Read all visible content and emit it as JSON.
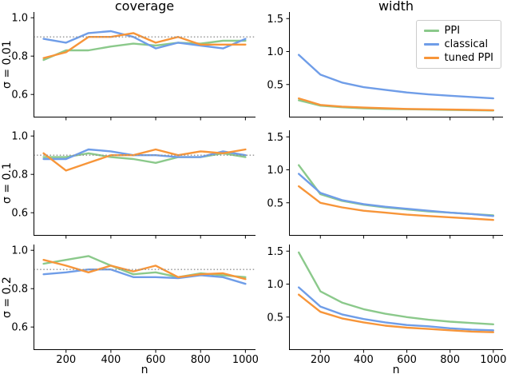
{
  "figure": {
    "col_titles": [
      "coverage",
      "width"
    ],
    "row_labels": [
      "σ = 0.01",
      "σ = 0.1",
      "σ = 0.2"
    ],
    "xlabel": "n",
    "coverage_target_level": 0.9,
    "colors": {
      "ppi": "#8bc98b",
      "classical": "#6f9de8",
      "tuned_ppi": "#f79539",
      "target_line": "#909090",
      "axis": "#000000"
    },
    "legend": {
      "position": "upper right",
      "items": [
        {
          "label": "PPI",
          "color": "#8bc98b"
        },
        {
          "label": "classical",
          "color": "#6f9de8"
        },
        {
          "label": "tuned PPI",
          "color": "#f79539"
        }
      ]
    }
  },
  "chart_data": [
    {
      "type": "line",
      "col": "coverage",
      "row": "σ = 0.01",
      "x": [
        100,
        200,
        300,
        400,
        500,
        600,
        700,
        800,
        900,
        1000
      ],
      "xlim": [
        55,
        1045
      ],
      "ylim": [
        0.48,
        1.03
      ],
      "xticks": [
        200,
        400,
        600,
        800,
        1000
      ],
      "yticks": [
        0.6,
        0.8,
        1.0
      ],
      "target_line": 0.9,
      "series": [
        {
          "name": "PPI",
          "color": "#8bc98b",
          "values": [
            0.78,
            0.83,
            0.83,
            0.85,
            0.865,
            0.855,
            0.87,
            0.865,
            0.88,
            0.88
          ]
        },
        {
          "name": "classical",
          "color": "#6f9de8",
          "values": [
            0.89,
            0.87,
            0.92,
            0.93,
            0.9,
            0.84,
            0.87,
            0.855,
            0.84,
            0.89
          ]
        },
        {
          "name": "tuned PPI",
          "color": "#f79539",
          "values": [
            0.79,
            0.82,
            0.9,
            0.9,
            0.92,
            0.87,
            0.9,
            0.86,
            0.86,
            0.86
          ]
        }
      ]
    },
    {
      "type": "line",
      "col": "width",
      "row": "σ = 0.01",
      "x": [
        100,
        200,
        300,
        400,
        500,
        600,
        700,
        800,
        900,
        1000
      ],
      "xlim": [
        55,
        1045
      ],
      "ylim": [
        0.0,
        1.6
      ],
      "xticks": [
        200,
        400,
        600,
        800,
        1000
      ],
      "yticks": [
        0.5,
        1.0,
        1.5
      ],
      "target_line": null,
      "series": [
        {
          "name": "PPI",
          "color": "#8bc98b",
          "values": [
            0.26,
            0.18,
            0.155,
            0.14,
            0.13,
            0.125,
            0.12,
            0.115,
            0.11,
            0.105
          ]
        },
        {
          "name": "classical",
          "color": "#6f9de8",
          "values": [
            0.95,
            0.65,
            0.53,
            0.46,
            0.42,
            0.38,
            0.35,
            0.33,
            0.31,
            0.29
          ]
        },
        {
          "name": "tuned PPI",
          "color": "#f79539",
          "values": [
            0.29,
            0.19,
            0.165,
            0.15,
            0.14,
            0.13,
            0.125,
            0.12,
            0.115,
            0.11
          ]
        }
      ]
    },
    {
      "type": "line",
      "col": "coverage",
      "row": "σ = 0.1",
      "x": [
        100,
        200,
        300,
        400,
        500,
        600,
        700,
        800,
        900,
        1000
      ],
      "xlim": [
        55,
        1045
      ],
      "ylim": [
        0.48,
        1.03
      ],
      "xticks": [
        200,
        400,
        600,
        800,
        1000
      ],
      "yticks": [
        0.6,
        0.8,
        1.0
      ],
      "target_line": 0.9,
      "series": [
        {
          "name": "PPI",
          "color": "#8bc98b",
          "values": [
            0.89,
            0.89,
            0.91,
            0.89,
            0.88,
            0.86,
            0.89,
            0.89,
            0.91,
            0.89
          ]
        },
        {
          "name": "classical",
          "color": "#6f9de8",
          "values": [
            0.88,
            0.88,
            0.93,
            0.92,
            0.9,
            0.9,
            0.89,
            0.89,
            0.92,
            0.9
          ]
        },
        {
          "name": "tuned PPI",
          "color": "#f79539",
          "values": [
            0.91,
            0.82,
            0.86,
            0.9,
            0.9,
            0.93,
            0.9,
            0.92,
            0.91,
            0.93
          ]
        }
      ]
    },
    {
      "type": "line",
      "col": "width",
      "row": "σ = 0.1",
      "x": [
        100,
        200,
        300,
        400,
        500,
        600,
        700,
        800,
        900,
        1000
      ],
      "xlim": [
        55,
        1045
      ],
      "ylim": [
        0.0,
        1.6
      ],
      "xticks": [
        200,
        400,
        600,
        800,
        1000
      ],
      "yticks": [
        0.5,
        1.0,
        1.5
      ],
      "target_line": null,
      "series": [
        {
          "name": "PPI",
          "color": "#8bc98b",
          "values": [
            1.07,
            0.63,
            0.53,
            0.47,
            0.43,
            0.4,
            0.37,
            0.35,
            0.33,
            0.31
          ]
        },
        {
          "name": "classical",
          "color": "#6f9de8",
          "values": [
            0.94,
            0.65,
            0.54,
            0.48,
            0.44,
            0.41,
            0.38,
            0.35,
            0.33,
            0.3
          ]
        },
        {
          "name": "tuned PPI",
          "color": "#f79539",
          "values": [
            0.75,
            0.5,
            0.43,
            0.38,
            0.35,
            0.32,
            0.3,
            0.28,
            0.26,
            0.24
          ]
        }
      ]
    },
    {
      "type": "line",
      "col": "coverage",
      "row": "σ = 0.2",
      "x": [
        100,
        200,
        300,
        400,
        500,
        600,
        700,
        800,
        900,
        1000
      ],
      "xlim": [
        55,
        1045
      ],
      "ylim": [
        0.48,
        1.03
      ],
      "xticks": [
        200,
        400,
        600,
        800,
        1000
      ],
      "yticks": [
        0.6,
        0.8,
        1.0
      ],
      "target_line": 0.9,
      "series": [
        {
          "name": "PPI",
          "color": "#8bc98b",
          "values": [
            0.93,
            0.95,
            0.97,
            0.92,
            0.875,
            0.885,
            0.86,
            0.88,
            0.87,
            0.86
          ]
        },
        {
          "name": "classical",
          "color": "#6f9de8",
          "values": [
            0.875,
            0.885,
            0.9,
            0.9,
            0.86,
            0.86,
            0.855,
            0.87,
            0.86,
            0.825
          ]
        },
        {
          "name": "tuned PPI",
          "color": "#f79539",
          "values": [
            0.95,
            0.92,
            0.885,
            0.92,
            0.89,
            0.92,
            0.86,
            0.875,
            0.88,
            0.85
          ]
        }
      ]
    },
    {
      "type": "line",
      "col": "width",
      "row": "σ = 0.2",
      "x": [
        100,
        200,
        300,
        400,
        500,
        600,
        700,
        800,
        900,
        1000
      ],
      "xlim": [
        55,
        1045
      ],
      "ylim": [
        0.0,
        1.6
      ],
      "xticks": [
        200,
        400,
        600,
        800,
        1000
      ],
      "yticks": [
        0.5,
        1.0,
        1.5
      ],
      "target_line": null,
      "series": [
        {
          "name": "PPI",
          "color": "#8bc98b",
          "values": [
            1.48,
            0.89,
            0.72,
            0.62,
            0.55,
            0.5,
            0.46,
            0.43,
            0.41,
            0.39
          ]
        },
        {
          "name": "classical",
          "color": "#6f9de8",
          "values": [
            0.95,
            0.66,
            0.54,
            0.47,
            0.42,
            0.38,
            0.36,
            0.33,
            0.31,
            0.3
          ]
        },
        {
          "name": "tuned PPI",
          "color": "#f79539",
          "values": [
            0.84,
            0.58,
            0.48,
            0.42,
            0.37,
            0.34,
            0.32,
            0.3,
            0.28,
            0.27
          ]
        }
      ]
    }
  ]
}
